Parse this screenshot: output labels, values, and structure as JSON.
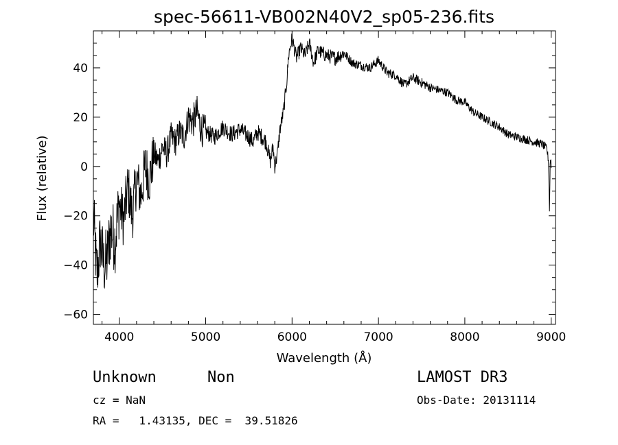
{
  "chart_data": {
    "type": "line",
    "title": "spec-56611-VB002N40V2_sp05-236.fits",
    "xlabel": "Wavelength (Å)",
    "ylabel": "Flux (relative)",
    "xlim": [
      3700,
      9050
    ],
    "ylim": [
      -64,
      55
    ],
    "xticks": [
      4000,
      5000,
      6000,
      7000,
      8000,
      9000
    ],
    "yticks": [
      -60,
      -40,
      -20,
      0,
      20,
      40
    ],
    "grid": false,
    "series": [
      {
        "name": "flux",
        "x": [
          3700,
          3740,
          3780,
          3820,
          3860,
          3900,
          3950,
          4000,
          4050,
          4100,
          4150,
          4200,
          4250,
          4300,
          4350,
          4400,
          4450,
          4500,
          4550,
          4600,
          4650,
          4700,
          4750,
          4800,
          4850,
          4900,
          4950,
          5000,
          5100,
          5200,
          5300,
          5400,
          5500,
          5550,
          5600,
          5650,
          5700,
          5750,
          5780,
          5800,
          5830,
          5860,
          5900,
          5940,
          5960,
          6000,
          6050,
          6100,
          6150,
          6200,
          6250,
          6300,
          6400,
          6500,
          6600,
          6700,
          6800,
          6900,
          7000,
          7100,
          7200,
          7300,
          7400,
          7500,
          7600,
          7700,
          7800,
          7900,
          8000,
          8100,
          8200,
          8300,
          8400,
          8500,
          8600,
          8700,
          8800,
          8900,
          8950,
          8970,
          8980,
          8990,
          9000
        ],
        "y": [
          -20,
          -45,
          -30,
          -40,
          -38,
          -25,
          -30,
          -15,
          -22,
          -8,
          -20,
          -5,
          -12,
          0,
          -5,
          5,
          2,
          8,
          5,
          12,
          10,
          14,
          12,
          20,
          18,
          22,
          15,
          14,
          12,
          16,
          13,
          15,
          12,
          10,
          14,
          12,
          10,
          2,
          8,
          0,
          5,
          15,
          22,
          35,
          45,
          52,
          44,
          48,
          45,
          50,
          42,
          47,
          45,
          44,
          46,
          42,
          41,
          40,
          43,
          38,
          37,
          33,
          36,
          34,
          32,
          31,
          30,
          27,
          26,
          22,
          20,
          18,
          16,
          13,
          12,
          11,
          10,
          9,
          7,
          2,
          -18,
          5,
          0
        ]
      }
    ]
  },
  "info": {
    "class_label": "Unknown",
    "subclass_label": "Non",
    "survey": "LAMOST DR3",
    "cz": "cz = NaN",
    "obs_date": "Obs-Date: 20131114",
    "coords": "RA =   1.43135, DEC =  39.51826"
  }
}
